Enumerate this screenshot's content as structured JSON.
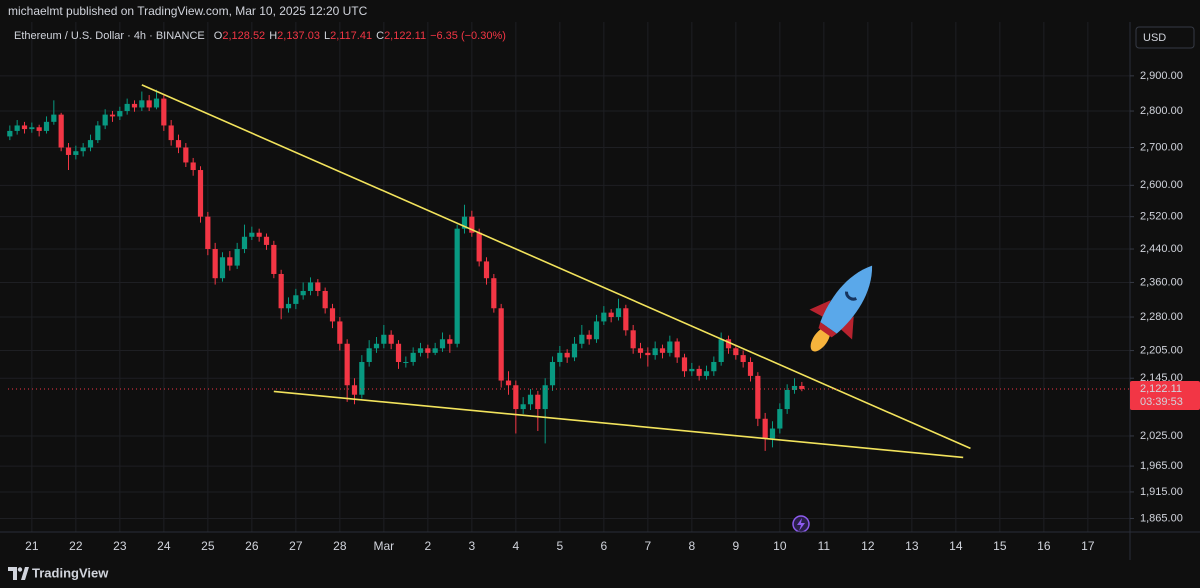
{
  "page_header": "michaelmt published on TradingView.com, Mar 10, 2025 12:20 UTC",
  "footer_brand": "TradingView",
  "chart_data": {
    "type": "candlestick",
    "symbol": "Ethereum / U.S. Dollar · 4h · BINANCE",
    "ohlc_legend": [
      {
        "key": "O",
        "value": "2,128.52"
      },
      {
        "key": "H",
        "value": "2,137.03"
      },
      {
        "key": "L",
        "value": "2,117.41"
      },
      {
        "key": "C",
        "value": "2,122.11"
      }
    ],
    "change": "−6.35 (−0.30%)",
    "currency": "USD",
    "last_price_label": "2,122.11",
    "countdown": "03:39:53",
    "up_color": "#089981",
    "down_color": "#f23645",
    "trendline_color": "#f2e35c",
    "log_scale": true,
    "grid": true,
    "xlim": [
      -13,
      599
    ],
    "ylim": [
      1840,
      3060
    ],
    "xticks": [
      {
        "value": 0,
        "label": "21"
      },
      {
        "value": 24,
        "label": "22"
      },
      {
        "value": 48,
        "label": "23"
      },
      {
        "value": 72,
        "label": "24"
      },
      {
        "value": 96,
        "label": "25"
      },
      {
        "value": 120,
        "label": "26"
      },
      {
        "value": 144,
        "label": "27"
      },
      {
        "value": 168,
        "label": "28"
      },
      {
        "value": 192,
        "label": "Mar"
      },
      {
        "value": 216,
        "label": "2"
      },
      {
        "value": 240,
        "label": "3"
      },
      {
        "value": 264,
        "label": "4"
      },
      {
        "value": 288,
        "label": "5"
      },
      {
        "value": 312,
        "label": "6"
      },
      {
        "value": 336,
        "label": "7"
      },
      {
        "value": 360,
        "label": "8"
      },
      {
        "value": 384,
        "label": "9"
      },
      {
        "value": 408,
        "label": "10"
      },
      {
        "value": 432,
        "label": "11"
      },
      {
        "value": 456,
        "label": "12"
      },
      {
        "value": 480,
        "label": "13"
      },
      {
        "value": 504,
        "label": "14"
      },
      {
        "value": 528,
        "label": "15"
      },
      {
        "value": 552,
        "label": "16"
      },
      {
        "value": 576,
        "label": "17"
      }
    ],
    "yticks": [
      {
        "value": 2900,
        "label": "2,900.00"
      },
      {
        "value": 2800,
        "label": "2,800.00"
      },
      {
        "value": 2700,
        "label": "2,700.00"
      },
      {
        "value": 2600,
        "label": "2,600.00"
      },
      {
        "value": 2520,
        "label": "2,520.00"
      },
      {
        "value": 2440,
        "label": "2,440.00"
      },
      {
        "value": 2360,
        "label": "2,360.00"
      },
      {
        "value": 2280,
        "label": "2,280.00"
      },
      {
        "value": 2205,
        "label": "2,205.00"
      },
      {
        "value": 2145,
        "label": "2,145.00"
      },
      {
        "value": 2025,
        "label": "2,025.00"
      },
      {
        "value": 1965,
        "label": "1,965.00"
      },
      {
        "value": 1915,
        "label": "1,915.00"
      },
      {
        "value": 1865,
        "label": "1,865.00"
      }
    ],
    "x": [
      -12,
      -8,
      -4,
      0,
      4,
      8,
      12,
      16,
      20,
      24,
      28,
      32,
      36,
      40,
      44,
      48,
      52,
      56,
      60,
      64,
      68,
      72,
      76,
      80,
      84,
      88,
      92,
      96,
      100,
      104,
      108,
      112,
      116,
      120,
      124,
      128,
      132,
      136,
      140,
      144,
      148,
      152,
      156,
      160,
      164,
      168,
      172,
      176,
      180,
      184,
      188,
      192,
      196,
      200,
      204,
      208,
      212,
      216,
      220,
      224,
      228,
      232,
      236,
      240,
      244,
      248,
      252,
      256,
      260,
      264,
      268,
      272,
      276,
      280,
      284,
      288,
      292,
      296,
      300,
      304,
      308,
      312,
      316,
      320,
      324,
      328,
      332,
      336,
      340,
      344,
      348,
      352,
      356,
      360,
      364,
      368,
      372,
      376,
      380,
      384,
      388,
      392,
      396,
      400,
      404,
      408,
      412,
      416,
      420
    ],
    "open": [
      2730,
      2745,
      2760,
      2750,
      2755,
      2745,
      2770,
      2790,
      2700,
      2680,
      2690,
      2700,
      2720,
      2760,
      2790,
      2785,
      2800,
      2820,
      2810,
      2830,
      2810,
      2835,
      2760,
      2720,
      2700,
      2660,
      2640,
      2520,
      2440,
      2370,
      2420,
      2400,
      2440,
      2470,
      2480,
      2470,
      2450,
      2380,
      2300,
      2310,
      2330,
      2340,
      2360,
      2340,
      2300,
      2270,
      2220,
      2130,
      2110,
      2180,
      2210,
      2220,
      2240,
      2220,
      2180,
      2180,
      2200,
      2210,
      2200,
      2210,
      2230,
      2220,
      2490,
      2520,
      2480,
      2410,
      2370,
      2300,
      2140,
      2130,
      2080,
      2090,
      2110,
      2080,
      2130,
      2180,
      2200,
      2190,
      2220,
      2240,
      2230,
      2270,
      2290,
      2280,
      2300,
      2250,
      2210,
      2200,
      2195,
      2210,
      2200,
      2225,
      2190,
      2160,
      2165,
      2150,
      2160,
      2180,
      2230,
      2210,
      2195,
      2180,
      2150,
      2060,
      2020,
      2040,
      2080,
      2120,
      2128.52
    ],
    "high": [
      2760,
      2775,
      2770,
      2768,
      2762,
      2785,
      2830,
      2795,
      2712,
      2705,
      2712,
      2735,
      2772,
      2805,
      2800,
      2812,
      2835,
      2830,
      2855,
      2845,
      2860,
      2845,
      2775,
      2735,
      2712,
      2672,
      2650,
      2532,
      2455,
      2432,
      2435,
      2455,
      2500,
      2495,
      2490,
      2478,
      2460,
      2390,
      2325,
      2345,
      2360,
      2372,
      2368,
      2348,
      2310,
      2280,
      2230,
      2145,
      2195,
      2228,
      2235,
      2262,
      2250,
      2228,
      2192,
      2212,
      2222,
      2218,
      2222,
      2245,
      2240,
      2500,
      2550,
      2535,
      2490,
      2420,
      2380,
      2310,
      2160,
      2140,
      2105,
      2122,
      2118,
      2145,
      2192,
      2215,
      2208,
      2235,
      2262,
      2250,
      2285,
      2305,
      2298,
      2322,
      2308,
      2262,
      2222,
      2212,
      2225,
      2218,
      2238,
      2232,
      2198,
      2178,
      2172,
      2172,
      2192,
      2245,
      2238,
      2218,
      2205,
      2190,
      2158,
      2072,
      2055,
      2092,
      2132,
      2145,
      2137.03
    ],
    "low": [
      2720,
      2735,
      2738,
      2740,
      2730,
      2738,
      2762,
      2690,
      2640,
      2668,
      2676,
      2690,
      2712,
      2750,
      2770,
      2775,
      2790,
      2798,
      2800,
      2800,
      2805,
      2745,
      2705,
      2685,
      2648,
      2625,
      2505,
      2425,
      2355,
      2362,
      2388,
      2392,
      2430,
      2462,
      2458,
      2438,
      2370,
      2275,
      2290,
      2298,
      2320,
      2330,
      2328,
      2288,
      2255,
      2205,
      2095,
      2090,
      2102,
      2170,
      2200,
      2210,
      2208,
      2165,
      2168,
      2172,
      2192,
      2188,
      2195,
      2202,
      2200,
      2212,
      2478,
      2470,
      2398,
      2355,
      2290,
      2125,
      2110,
      2030,
      2070,
      2078,
      2035,
      2010,
      2118,
      2170,
      2178,
      2182,
      2210,
      2218,
      2222,
      2262,
      2268,
      2272,
      2238,
      2198,
      2188,
      2170,
      2185,
      2188,
      2192,
      2178,
      2148,
      2150,
      2140,
      2142,
      2150,
      2172,
      2198,
      2185,
      2168,
      2138,
      2045,
      1995,
      2002,
      2030,
      2070,
      2112,
      2117.41
    ],
    "close": [
      2745,
      2760,
      2750,
      2755,
      2745,
      2770,
      2790,
      2700,
      2680,
      2690,
      2700,
      2720,
      2760,
      2790,
      2785,
      2800,
      2820,
      2810,
      2830,
      2810,
      2835,
      2760,
      2720,
      2700,
      2660,
      2640,
      2520,
      2440,
      2370,
      2420,
      2400,
      2440,
      2470,
      2480,
      2470,
      2450,
      2380,
      2300,
      2310,
      2330,
      2340,
      2360,
      2340,
      2300,
      2270,
      2220,
      2130,
      2110,
      2180,
      2210,
      2220,
      2240,
      2220,
      2180,
      2180,
      2200,
      2210,
      2200,
      2210,
      2230,
      2220,
      2490,
      2520,
      2480,
      2410,
      2370,
      2300,
      2140,
      2130,
      2080,
      2090,
      2110,
      2080,
      2130,
      2180,
      2200,
      2190,
      2220,
      2240,
      2230,
      2270,
      2290,
      2280,
      2300,
      2250,
      2210,
      2200,
      2195,
      2210,
      2200,
      2225,
      2190,
      2160,
      2165,
      2150,
      2160,
      2180,
      2230,
      2210,
      2195,
      2180,
      2150,
      2060,
      2020,
      2040,
      2080,
      2120,
      2128.52,
      2122.11
    ],
    "trendlines": [
      {
        "x": [
          60,
          512
        ],
        "y": [
          2874,
          2000
        ]
      },
      {
        "x": [
          132,
          508
        ],
        "y": [
          2117,
          1982
        ]
      }
    ]
  }
}
